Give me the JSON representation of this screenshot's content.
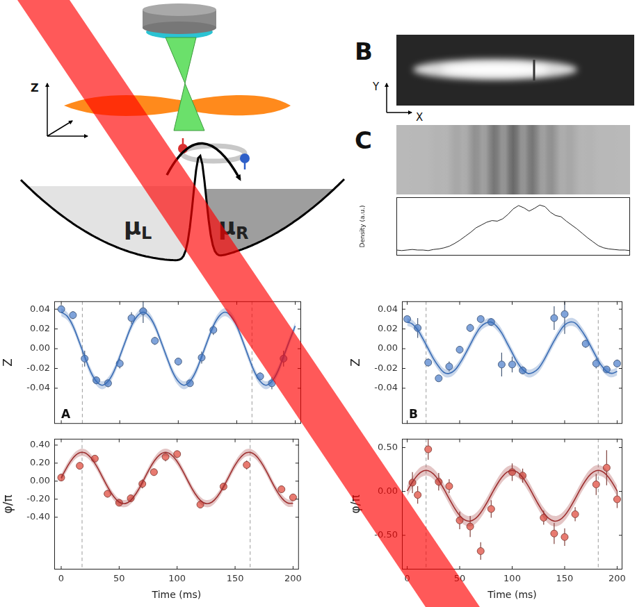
{
  "diagram": {
    "axis_label": "Z",
    "potentials": [
      {
        "symbol": "μ",
        "subscript": "L"
      },
      {
        "symbol": "μ",
        "subscript": "R"
      }
    ]
  },
  "images": [
    {
      "letter": "B",
      "x_axis": "X",
      "y_axis": "Y"
    },
    {
      "letter": "C"
    }
  ],
  "chart_data": [
    {
      "type": "scatter",
      "panel": "A",
      "y_label": "Z",
      "xlim": [
        -6,
        205
      ],
      "xticks": [
        0,
        50,
        100,
        150,
        200
      ],
      "ylim": [
        -0.076,
        0.048
      ],
      "yticks": [
        -0.04,
        -0.02,
        {
          "value": 0,
          "label": "0.00"
        },
        0.02,
        0.04
      ],
      "tick_labels": "y",
      "grid": false,
      "vlines": [
        18,
        163
      ],
      "series": [
        {
          "type": "line",
          "color": "#3a6db5",
          "band": 0.004,
          "x": [
            0,
            5,
            10,
            15,
            20,
            25,
            30,
            35,
            40,
            45,
            50,
            55,
            60,
            65,
            70,
            75,
            80,
            85,
            90,
            95,
            100,
            105,
            110,
            115,
            120,
            125,
            130,
            135,
            140,
            145,
            150,
            155,
            160,
            165,
            170,
            175,
            180,
            185,
            190,
            195,
            200
          ],
          "values": [
            0.037,
            0.033,
            0.023,
            0.008,
            -0.008,
            -0.023,
            -0.033,
            -0.037,
            -0.033,
            -0.023,
            -0.008,
            0.008,
            0.023,
            0.033,
            0.037,
            0.033,
            0.023,
            0.008,
            -0.008,
            -0.023,
            -0.033,
            -0.037,
            -0.033,
            -0.023,
            -0.008,
            0.008,
            0.023,
            0.033,
            0.037,
            0.033,
            0.023,
            0.008,
            -0.008,
            -0.023,
            -0.033,
            -0.037,
            -0.033,
            -0.023,
            -0.008,
            0.008,
            0.023
          ]
        },
        {
          "type": "scatter",
          "color": "#7fa3da",
          "marker": "circle",
          "x": [
            0,
            10,
            20,
            30,
            40,
            50,
            60,
            70,
            80,
            100,
            110,
            120,
            130,
            170,
            180,
            190
          ],
          "values": [
            0.04,
            0.034,
            -0.01,
            -0.032,
            -0.035,
            -0.015,
            0.031,
            0.038,
            0.008,
            -0.013,
            -0.035,
            -0.009,
            0.019,
            -0.028,
            -0.035,
            -0.01
          ],
          "errors": [
            0.004,
            0.004,
            0.008,
            0.004,
            0.004,
            0.005,
            0.006,
            0.012,
            0.004,
            0.004,
            0.003,
            0.006,
            0.005,
            0.004,
            0.006,
            0.008
          ]
        }
      ]
    },
    {
      "type": "scatter",
      "x_label": "Time (ms)",
      "y_label": "φ/π",
      "xlim": [
        -6,
        205
      ],
      "xticks": [
        0,
        50,
        100,
        150,
        200
      ],
      "ylim": [
        -0.98,
        0.47
      ],
      "yticks": [
        {
          "value": -0.4,
          "label": "-0.40"
        },
        {
          "value": -0.2,
          "label": "-0.20"
        },
        {
          "value": 0,
          "label": "0.00"
        },
        {
          "value": 0.2,
          "label": "0.20"
        },
        {
          "value": 0.4,
          "label": "0.40"
        }
      ],
      "grid": false,
      "vlines": [
        18,
        163
      ],
      "series": [
        {
          "type": "line",
          "color": "#9e3030",
          "band": 0.04,
          "x": [
            0,
            5,
            10,
            15,
            20,
            25,
            30,
            35,
            40,
            45,
            50,
            55,
            60,
            65,
            70,
            75,
            80,
            85,
            90,
            95,
            100,
            105,
            110,
            115,
            120,
            125,
            130,
            135,
            140,
            145,
            150,
            155,
            160,
            165,
            170,
            175,
            180,
            185,
            190,
            195,
            200
          ],
          "values": [
            0.035,
            0.156,
            0.253,
            0.31,
            0.316,
            0.268,
            0.178,
            0.06,
            -0.062,
            -0.166,
            -0.233,
            -0.249,
            -0.212,
            -0.129,
            -0.015,
            0.109,
            0.218,
            0.293,
            0.32,
            0.293,
            0.218,
            0.109,
            -0.015,
            -0.129,
            -0.212,
            -0.249,
            -0.233,
            -0.166,
            -0.062,
            0.06,
            0.178,
            0.268,
            0.316,
            0.31,
            0.253,
            0.156,
            0.035,
            -0.086,
            -0.183,
            -0.24,
            -0.246
          ]
        },
        {
          "type": "scatter",
          "color": "#e87a70",
          "marker": "circle",
          "x": [
            0,
            16,
            29,
            40,
            50,
            60,
            70,
            80,
            90,
            100,
            120,
            140,
            160,
            190,
            200
          ],
          "values": [
            0.04,
            0.17,
            0.25,
            -0.14,
            -0.24,
            -0.19,
            -0.03,
            0.1,
            0.27,
            0.3,
            -0.26,
            -0.06,
            0.18,
            -0.09,
            -0.18
          ],
          "errors": [
            0.03,
            0.04,
            0.03,
            0.04,
            0.03,
            0.04,
            0.05,
            0.04,
            0.05,
            0.04,
            0.03,
            0.04,
            0.05,
            0.04,
            0.04
          ]
        }
      ]
    },
    {
      "type": "scatter",
      "panel": "B",
      "y_label": "Z",
      "xlim": [
        -5,
        205
      ],
      "xticks": [
        0,
        50,
        100,
        150,
        200
      ],
      "ylim": [
        -0.076,
        0.048
      ],
      "yticks": [
        -0.04,
        -0.02,
        {
          "value": 0,
          "label": "0.00"
        },
        0.02,
        0.04
      ],
      "tick_labels": "y",
      "grid": false,
      "vlines": [
        18,
        182
      ],
      "series": [
        {
          "type": "line",
          "color": "#3a6db5",
          "band": 0.004,
          "x": [
            0,
            5,
            10,
            15,
            20,
            25,
            30,
            35,
            40,
            45,
            50,
            55,
            60,
            65,
            70,
            75,
            80,
            85,
            90,
            95,
            100,
            105,
            110,
            115,
            120,
            125,
            130,
            135,
            140,
            145,
            150,
            155,
            160,
            165,
            170,
            175,
            180,
            185,
            190,
            195,
            200
          ],
          "values": [
            0.027,
            0.025,
            0.019,
            0.01,
            0.0,
            -0.01,
            -0.018,
            -0.024,
            -0.025,
            -0.022,
            -0.015,
            -0.006,
            0.004,
            0.014,
            0.022,
            0.026,
            0.027,
            0.023,
            0.016,
            0.006,
            -0.004,
            -0.014,
            -0.021,
            -0.025,
            -0.024,
            -0.02,
            -0.012,
            -0.002,
            0.008,
            0.017,
            0.024,
            0.027,
            0.026,
            0.02,
            0.012,
            0.002,
            -0.008,
            -0.017,
            -0.023,
            -0.025,
            -0.023
          ]
        },
        {
          "type": "scatter",
          "color": "#7fa3da",
          "marker": "circle",
          "x": [
            0,
            10,
            20,
            30,
            40,
            50,
            60,
            70,
            80,
            90,
            100,
            110,
            140,
            150,
            170,
            180,
            190,
            200
          ],
          "values": [
            0.03,
            0.021,
            -0.014,
            -0.03,
            -0.018,
            -0.001,
            0.021,
            0.03,
            0.027,
            -0.016,
            -0.016,
            -0.022,
            0.031,
            0.035,
            0.005,
            -0.015,
            -0.021,
            -0.015
          ],
          "errors": [
            0.003,
            0.01,
            0.004,
            0.003,
            0.005,
            0.003,
            0.004,
            0.003,
            0.004,
            0.012,
            0.008,
            0.004,
            0.012,
            0.02,
            0.004,
            0.005,
            0.003,
            0.004
          ]
        }
      ]
    },
    {
      "type": "scatter",
      "x_label": "Time (ms)",
      "y_label": "φ/π",
      "xlim": [
        -5,
        205
      ],
      "xticks": [
        0,
        50,
        100,
        150,
        200
      ],
      "ylim": [
        -0.89,
        0.6
      ],
      "yticks": [
        {
          "value": -0.5,
          "label": "-0.50"
        },
        {
          "value": 0,
          "label": "0.00"
        },
        {
          "value": 0.5,
          "label": "0.50"
        }
      ],
      "grid": false,
      "vlines": [
        18,
        182
      ],
      "series": [
        {
          "type": "line",
          "color": "#9e3030",
          "band": 0.06,
          "x": [
            0,
            5,
            10,
            15,
            20,
            25,
            30,
            35,
            40,
            45,
            50,
            55,
            60,
            65,
            70,
            75,
            80,
            85,
            90,
            95,
            100,
            105,
            110,
            115,
            120,
            125,
            130,
            135,
            140,
            145,
            150,
            155,
            160,
            165,
            170,
            175,
            180,
            185,
            190,
            195,
            200
          ],
          "values": [
            0.005,
            0.107,
            0.187,
            0.232,
            0.237,
            0.199,
            0.126,
            0.027,
            -0.083,
            -0.188,
            -0.274,
            -0.326,
            -0.339,
            -0.31,
            -0.243,
            -0.148,
            -0.039,
            0.068,
            0.159,
            0.219,
            0.24,
            0.219,
            0.159,
            0.069,
            -0.039,
            -0.148,
            -0.243,
            -0.31,
            -0.339,
            -0.326,
            -0.274,
            -0.188,
            -0.083,
            0.027,
            0.126,
            0.199,
            0.237,
            0.232,
            0.187,
            0.107,
            0.005
          ]
        },
        {
          "type": "scatter",
          "color": "#e87a70",
          "marker": "circle",
          "x": [
            5,
            10,
            20,
            30,
            40,
            50,
            60,
            70,
            80,
            100,
            110,
            130,
            140,
            150,
            160,
            180,
            190,
            200
          ],
          "values": [
            0.1,
            -0.04,
            0.48,
            0.11,
            0.06,
            -0.33,
            -0.4,
            -0.68,
            -0.2,
            0.22,
            0.18,
            -0.3,
            -0.48,
            -0.52,
            -0.26,
            0.08,
            0.27,
            -0.09
          ],
          "errors": [
            0.12,
            0.1,
            0.12,
            0.1,
            0.08,
            0.1,
            0.12,
            0.1,
            0.1,
            0.1,
            0.08,
            0.08,
            0.12,
            0.1,
            0.08,
            0.12,
            0.2,
            0.1
          ]
        }
      ]
    },
    {
      "type": "line",
      "y_label": "Density (a.u.)",
      "tick_labels": false,
      "grid": false,
      "ylim": [
        0,
        1.05
      ],
      "color": "#222222",
      "values": [
        0.1,
        0.09,
        0.1,
        0.11,
        0.1,
        0.1,
        0.09,
        0.11,
        0.12,
        0.14,
        0.17,
        0.22,
        0.28,
        0.35,
        0.42,
        0.5,
        0.55,
        0.6,
        0.63,
        0.62,
        0.66,
        0.74,
        0.84,
        0.9,
        0.86,
        0.8,
        0.85,
        0.91,
        0.88,
        0.78,
        0.72,
        0.7,
        0.62,
        0.55,
        0.48,
        0.4,
        0.32,
        0.25,
        0.18,
        0.14,
        0.12,
        0.11,
        0.1,
        0.1,
        0.09
      ]
    }
  ]
}
